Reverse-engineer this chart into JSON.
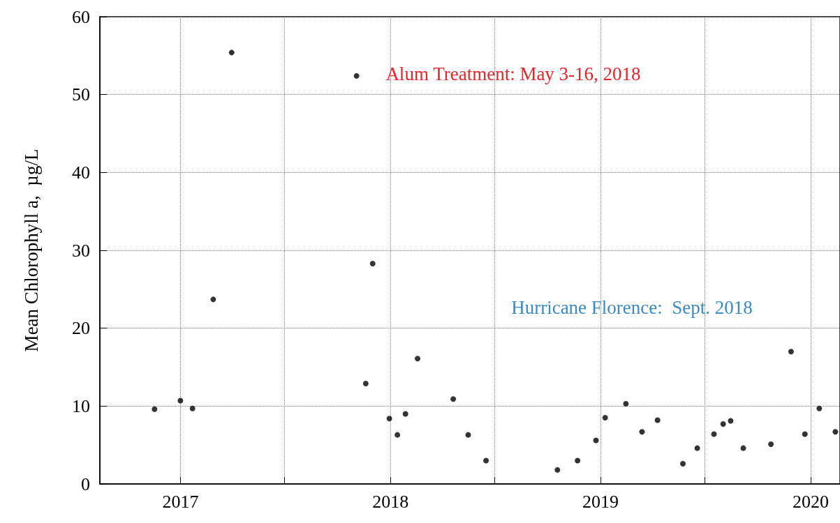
{
  "chart_data": {
    "type": "scatter",
    "ylabel": "Mean Chlorophyll a,  µg/L",
    "annotations": [
      "Alum Treatment: May 3-16, 2018",
      "Hurricane Florence:  Sept. 2018"
    ],
    "x": [
      "2016-11-17",
      "2017-01-01",
      "2017-01-22",
      "2017-02-27",
      "2017-03-31",
      "2017-11-03",
      "2017-11-19",
      "2017-12-01",
      "2017-12-30",
      "2018-01-13",
      "2018-01-27",
      "2018-02-17",
      "2018-04-20",
      "2018-05-16",
      "2018-06-16",
      "2018-10-18",
      "2018-11-22",
      "2018-12-24",
      "2019-01-09",
      "2019-02-14",
      "2019-03-14",
      "2019-04-10",
      "2019-05-24",
      "2019-06-18",
      "2019-07-17",
      "2019-08-02",
      "2019-08-15",
      "2019-09-06",
      "2019-10-24",
      "2019-11-28",
      "2019-12-22",
      "2020-01-16",
      "2020-02-13"
    ],
    "series": [
      {
        "color": "#000000",
        "values": [
          9.6,
          10.7,
          9.7,
          23.7,
          55.4,
          52.4,
          12.9,
          28.3,
          8.4,
          6.3,
          9.0,
          16.1,
          10.9,
          6.3,
          3.0,
          1.8,
          3.0,
          5.6,
          8.5,
          10.3,
          6.7,
          8.2,
          2.6,
          4.6,
          6.4,
          7.7,
          8.1,
          4.6,
          5.1,
          17.0,
          6.4,
          9.7,
          6.7
        ]
      }
    ],
    "xlim": [
      "2016-08-14",
      "2020-02-21"
    ],
    "xticks": [
      {
        "value": "2017",
        "label": "2017"
      },
      {
        "value": "2017-07-01",
        "label": null
      },
      {
        "value": "2018",
        "label": "2018"
      },
      {
        "value": "2018-07-01",
        "label": null
      },
      {
        "value": "2019",
        "label": "2019"
      },
      {
        "value": "2019-07-01",
        "label": null
      },
      {
        "value": "2020",
        "label": "2020"
      }
    ],
    "ylim": [
      0,
      60
    ],
    "yticks": [
      0,
      10,
      20,
      30,
      40,
      50,
      60
    ],
    "grid": true,
    "marker": "circle"
  }
}
